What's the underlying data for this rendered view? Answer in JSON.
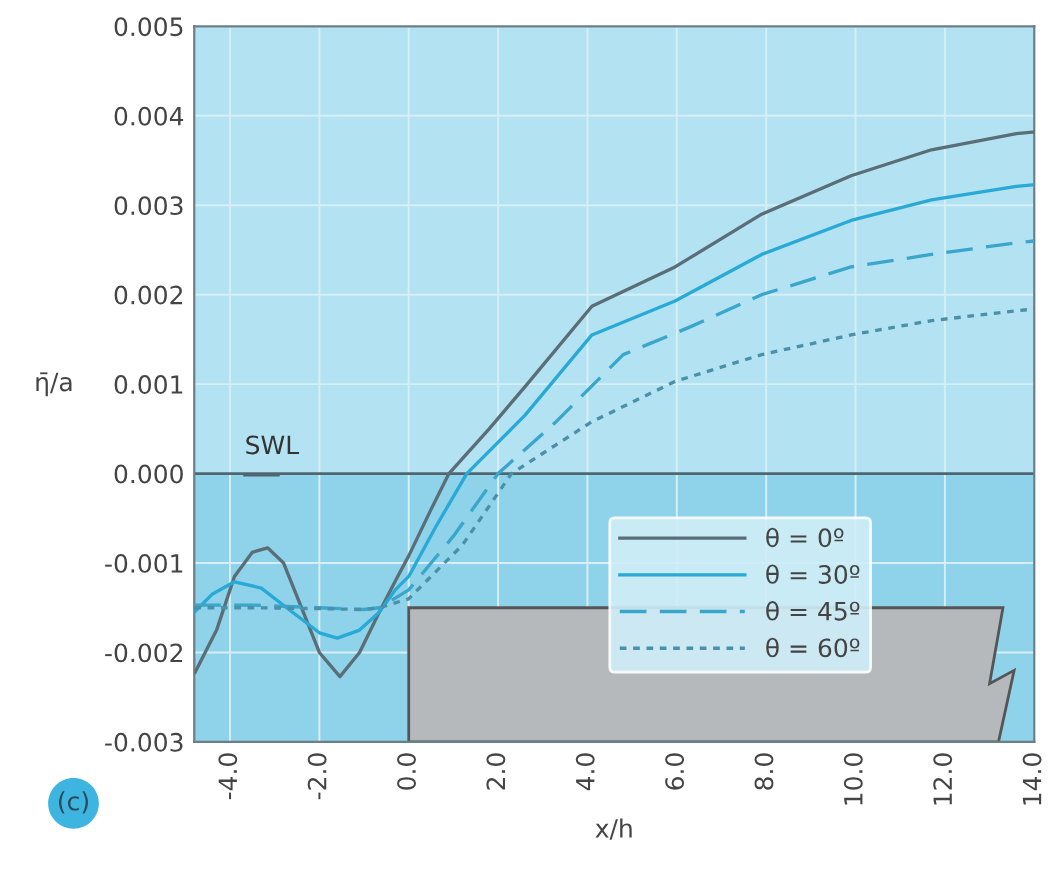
{
  "chart_data": {
    "type": "line",
    "xlabel": "x/h",
    "ylabel": "η̄/a",
    "annotations": [
      "(c)"
    ],
    "xlim": [
      -4.8,
      14.0
    ],
    "xticks": [
      {
        "value": -4.0,
        "label": "-4.0"
      },
      {
        "value": -2.0,
        "label": "-2.0"
      },
      {
        "value": 0.0,
        "label": "0.0"
      },
      {
        "value": 2.0,
        "label": "2.0"
      },
      {
        "value": 4.0,
        "label": "4.0"
      },
      {
        "value": 6.0,
        "label": "6.0"
      },
      {
        "value": 8.0,
        "label": "8.0"
      },
      {
        "value": 10.0,
        "label": "10.0"
      },
      {
        "value": 12.0,
        "label": "12.0"
      },
      {
        "value": 14.0,
        "label": "14.0"
      }
    ],
    "ylim": [
      -0.003,
      0.005
    ],
    "yticks": [
      {
        "value": -0.003,
        "label": "-0.003"
      },
      {
        "value": -0.002,
        "label": "-0.002"
      },
      {
        "value": -0.001,
        "label": "-0.001"
      },
      {
        "value": 0.0,
        "label": "0.000"
      },
      {
        "value": 0.001,
        "label": "0.001"
      },
      {
        "value": 0.002,
        "label": "0.002"
      },
      {
        "value": 0.003,
        "label": "0.003"
      },
      {
        "value": 0.004,
        "label": "0.004"
      },
      {
        "value": 0.005,
        "label": "0.005"
      }
    ],
    "grid": true,
    "legend": "bottom right",
    "ref_lines": [
      {
        "axis": "y",
        "value": 0.0,
        "label": "SWL",
        "color": "#4f6570"
      }
    ],
    "bands": [
      {
        "axis": "y",
        "from": -0.003,
        "to": 0.0,
        "color": "#8fd3ea"
      }
    ],
    "series": [
      {
        "name": "θ = 0º",
        "color": "#5a6e78",
        "line_style": "solid",
        "x": [
          -4.78,
          -4.3,
          -3.9,
          -3.5,
          -3.16,
          -2.8,
          -2.4,
          -2.0,
          -1.54,
          -1.1,
          -0.66,
          -0.3,
          0.0,
          0.5,
          0.9,
          1.8,
          2.6,
          4.1,
          5.96,
          7.9,
          9.9,
          11.7,
          13.6,
          14.0
        ],
        "values": [
          -0.00222,
          -0.00175,
          -0.00115,
          -0.00088,
          -0.00083,
          -0.001,
          -0.0015,
          -0.002,
          -0.00227,
          -0.002,
          -0.00155,
          -0.0012,
          -0.00092,
          -0.0004,
          0.0,
          0.0005,
          0.00097,
          0.00187,
          0.00231,
          0.0029,
          0.00333,
          0.00362,
          0.0038,
          0.00382
        ]
      },
      {
        "name": "θ = 30º",
        "color": "#29a9d6",
        "line_style": "solid",
        "x": [
          -4.8,
          -4.4,
          -3.9,
          -3.3,
          -2.6,
          -2.0,
          -1.6,
          -1.1,
          -0.66,
          -0.3,
          0.0,
          0.6,
          1.3,
          2.6,
          4.1,
          5.96,
          7.9,
          9.9,
          11.7,
          13.6,
          14.0
        ],
        "values": [
          -0.00155,
          -0.00135,
          -0.00121,
          -0.00128,
          -0.00155,
          -0.00178,
          -0.00184,
          -0.00175,
          -0.00155,
          -0.0013,
          -0.00115,
          -0.0006,
          0.0,
          0.00065,
          0.00155,
          0.00193,
          0.00245,
          0.00283,
          0.00306,
          0.00321,
          0.00323
        ]
      },
      {
        "name": "θ = 45º",
        "color": "#3aa6cc",
        "line_style": "dashed",
        "x": [
          -4.8,
          -3.5,
          -2.0,
          -1.0,
          -0.66,
          0.0,
          1.0,
          2.0,
          3.3,
          4.8,
          6.3,
          7.9,
          9.9,
          11.7,
          13.6,
          14.0
        ],
        "values": [
          -0.00147,
          -0.00147,
          -0.0015,
          -0.00152,
          -0.0015,
          -0.0013,
          -0.0007,
          0.0,
          0.00058,
          0.00133,
          0.00164,
          0.002,
          0.00231,
          0.00245,
          0.00258,
          0.0026
        ]
      },
      {
        "name": "θ = 60º",
        "color": "#4a90a8",
        "line_style": "dotted",
        "x": [
          -4.8,
          -3.5,
          -2.0,
          -1.0,
          -0.66,
          0.0,
          1.2,
          2.3,
          4.1,
          5.96,
          7.9,
          9.9,
          11.7,
          13.6,
          14.0
        ],
        "values": [
          -0.0015,
          -0.0015,
          -0.00151,
          -0.00152,
          -0.0015,
          -0.0014,
          -0.0008,
          0.0,
          0.00058,
          0.00103,
          0.00133,
          0.00155,
          0.00171,
          0.00182,
          0.00184
        ]
      }
    ]
  }
}
